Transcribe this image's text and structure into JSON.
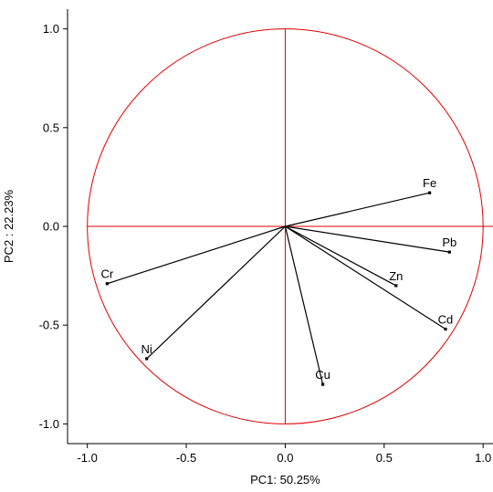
{
  "chart_data": {
    "type": "scatter",
    "subtype": "pca-correlation-circle",
    "title": "",
    "xlabel": "PC1: 50.25%",
    "ylabel": "PC2 : 22.23%",
    "xlim": [
      -1.1,
      1.05
    ],
    "ylim": [
      -1.1,
      1.1
    ],
    "xticks": [
      -1.0,
      -0.5,
      0.0,
      0.5,
      1.0
    ],
    "xtick_labels": [
      "-1.0",
      "-0.5",
      "0.0",
      "0.5",
      "1.0"
    ],
    "yticks": [
      -1.0,
      -0.5,
      0.0,
      0.5,
      1.0
    ],
    "ytick_labels": [
      "-1.0",
      "-0.5",
      "0.0",
      "0.5",
      "1.0"
    ],
    "grid": false,
    "unit_circle": true,
    "reference_lines": {
      "x": 0,
      "y": 0
    },
    "points": [
      {
        "label": "Fe",
        "x": 0.73,
        "y": 0.17
      },
      {
        "label": "Pb",
        "x": 0.83,
        "y": -0.13
      },
      {
        "label": "Zn",
        "x": 0.56,
        "y": -0.3
      },
      {
        "label": "Cd",
        "x": 0.81,
        "y": -0.52
      },
      {
        "label": "Cu",
        "x": 0.19,
        "y": -0.8
      },
      {
        "label": "Ni",
        "x": -0.7,
        "y": -0.67
      },
      {
        "label": "Cr",
        "x": -0.9,
        "y": -0.29
      }
    ],
    "colors": {
      "circle": "#e00000",
      "reference_lines": "#e00000",
      "vectors": "#000000",
      "axes": "#000000"
    }
  }
}
